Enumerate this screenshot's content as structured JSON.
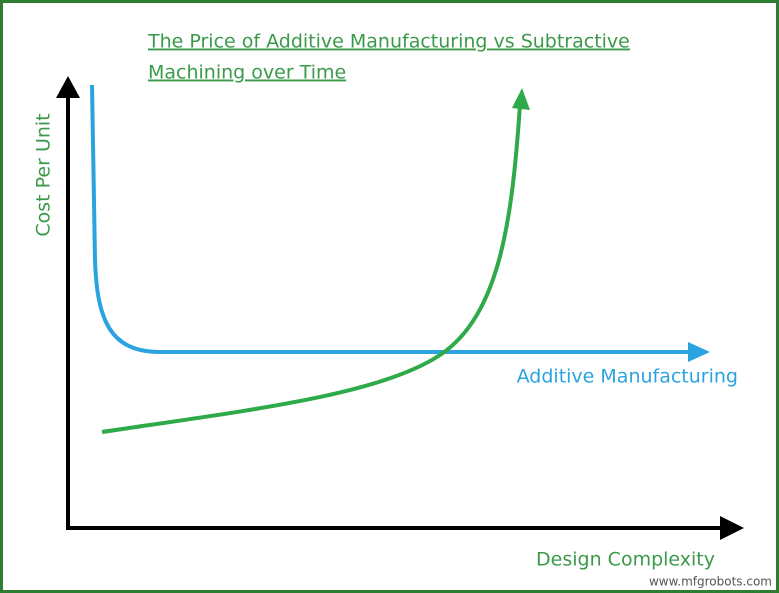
{
  "title": {
    "line1": "The Price of Additive Manufacturing vs Subtractive",
    "line2": "Machining over Time"
  },
  "axes": {
    "y_label": "Cost Per Unit",
    "x_label": "Design Complexity"
  },
  "curves": {
    "blue_label": "Additive Manufacturing"
  },
  "watermark": "www.mfgrobots.com"
}
